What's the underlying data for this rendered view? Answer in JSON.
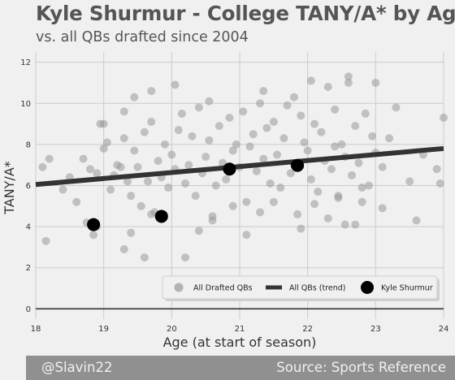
{
  "chart_data": {
    "type": "scatter",
    "title": "Kyle Shurmur - College TANY/A* by Age",
    "subtitle": "vs. all QBs drafted since 2004",
    "xlabel": "Age (at start of season)",
    "ylabel": "TANY/A*",
    "xlim": [
      18,
      24
    ],
    "ylim": [
      -0.5,
      12.5
    ],
    "xticks": [
      "18",
      "19",
      "20",
      "21",
      "22",
      "23",
      "24"
    ],
    "yticks": [
      "0",
      "2",
      "4",
      "6",
      "8",
      "10",
      "12"
    ],
    "grid": true,
    "legend_position": "bottom-right",
    "legend": [
      "All Drafted QBs",
      "All QBs (trend)",
      "Kyle Shurmur"
    ],
    "colors": {
      "background": "#f0f0f0",
      "scatter": "#999999",
      "trend": "#333333",
      "highlight": "#000000",
      "grid": "#cbcbcb",
      "footer": "#909090"
    },
    "series": [
      {
        "name": "All Drafted QBs",
        "x": [
          18.1,
          18.2,
          18.4,
          18.5,
          18.6,
          18.7,
          18.75,
          18.8,
          18.85,
          18.9,
          18.95,
          19.0,
          19.05,
          19.1,
          19.15,
          19.2,
          19.25,
          19.3,
          19.35,
          19.4,
          19.45,
          19.5,
          19.55,
          19.6,
          19.65,
          19.7,
          19.75,
          19.8,
          19.85,
          19.9,
          19.95,
          20.0,
          20.05,
          20.1,
          20.15,
          20.2,
          20.25,
          20.3,
          20.35,
          20.4,
          20.45,
          20.5,
          20.55,
          20.6,
          20.65,
          20.7,
          20.75,
          20.8,
          20.85,
          20.9,
          20.95,
          21.0,
          21.05,
          21.1,
          21.15,
          21.2,
          21.25,
          21.3,
          21.35,
          21.4,
          21.45,
          21.5,
          21.55,
          21.6,
          21.65,
          21.7,
          21.75,
          21.8,
          21.85,
          21.9,
          21.95,
          22.0,
          22.05,
          22.1,
          22.15,
          22.2,
          22.25,
          22.3,
          22.35,
          22.4,
          22.45,
          22.5,
          22.55,
          22.6,
          22.65,
          22.7,
          22.75,
          22.8,
          22.85,
          22.9,
          22.95,
          23.0,
          23.1,
          23.2,
          23.3,
          23.5,
          23.7,
          23.9,
          24.0,
          18.15,
          18.9,
          19.0,
          19.3,
          19.4,
          19.6,
          19.7,
          20.2,
          20.4,
          20.6,
          20.9,
          21.1,
          21.3,
          21.5,
          21.9,
          22.1,
          22.3,
          22.45,
          22.55,
          22.8,
          23.1,
          23.6,
          19.3,
          19.45,
          19.7,
          20.05,
          20.55,
          21.35,
          21.8,
          22.05,
          22.6,
          23.0,
          22.4,
          22.7,
          23.95
        ],
        "y": [
          6.9,
          7.3,
          5.8,
          6.4,
          5.2,
          7.3,
          4.2,
          6.8,
          3.6,
          6.6,
          9.0,
          7.8,
          8.1,
          5.8,
          6.5,
          7.0,
          6.9,
          8.3,
          6.2,
          5.5,
          7.7,
          6.9,
          5.0,
          8.6,
          6.2,
          9.1,
          4.7,
          7.2,
          6.4,
          8.0,
          5.9,
          7.5,
          6.8,
          8.7,
          9.5,
          6.1,
          7.0,
          8.4,
          5.5,
          9.8,
          6.6,
          7.4,
          8.2,
          4.5,
          6.0,
          8.9,
          7.1,
          6.3,
          9.3,
          7.7,
          8.0,
          6.9,
          9.6,
          5.2,
          7.9,
          8.5,
          6.7,
          10.0,
          7.3,
          8.8,
          6.1,
          9.1,
          7.5,
          5.9,
          8.3,
          9.9,
          6.6,
          7.0,
          4.6,
          9.4,
          8.1,
          7.7,
          6.3,
          9.0,
          5.7,
          8.6,
          7.2,
          10.8,
          6.8,
          9.7,
          5.4,
          8.0,
          7.4,
          11.0,
          6.5,
          8.9,
          7.1,
          5.9,
          9.5,
          6.0,
          8.4,
          7.6,
          6.9,
          8.3,
          9.8,
          6.2,
          7.5,
          6.8,
          9.3,
          3.3,
          4.0,
          9.0,
          2.9,
          3.7,
          2.5,
          4.6,
          2.5,
          3.8,
          4.3,
          5.0,
          3.6,
          4.7,
          5.2,
          3.9,
          5.1,
          4.4,
          5.5,
          4.1,
          5.2,
          4.9,
          4.3,
          9.6,
          10.3,
          10.6,
          10.9,
          10.1,
          10.6,
          10.3,
          11.1,
          11.3,
          11.0,
          7.9,
          4.1,
          6.1
        ]
      },
      {
        "name": "All QBs (trend)",
        "x": [
          18.0,
          24.0
        ],
        "y": [
          6.05,
          7.8
        ]
      },
      {
        "name": "Kyle Shurmur",
        "x": [
          18.85,
          19.85,
          20.85,
          21.85
        ],
        "y": [
          4.1,
          4.5,
          6.8,
          6.98
        ]
      }
    ]
  },
  "footer": {
    "credit": "@Slavin22",
    "source": "Source: Sports Reference"
  }
}
